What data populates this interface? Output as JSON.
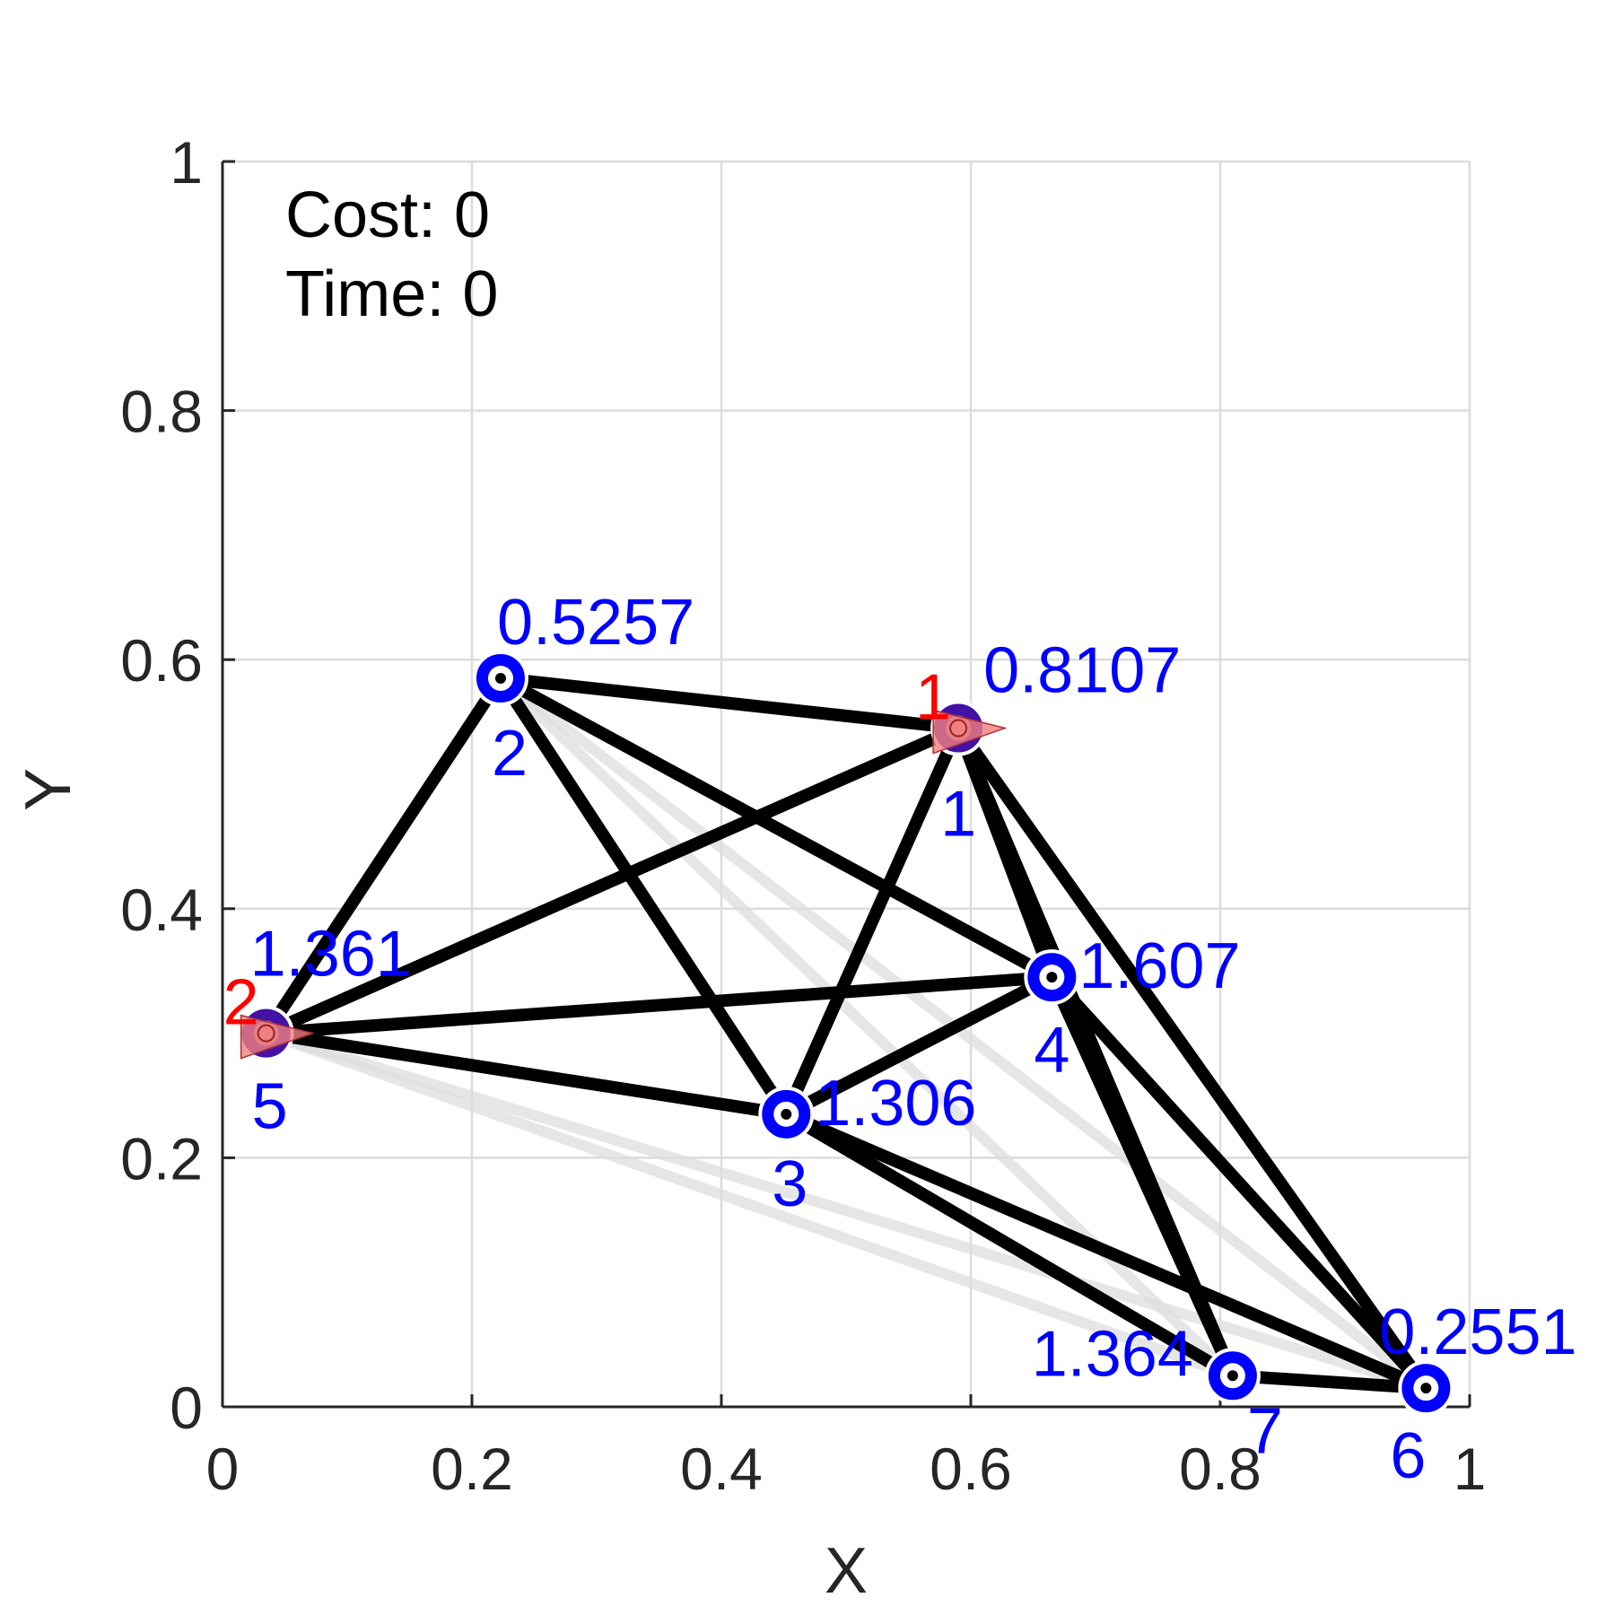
{
  "chart_data": {
    "type": "scatter",
    "title": "",
    "xlabel": "X",
    "ylabel": "Y",
    "xlim": [
      0,
      1
    ],
    "ylim": [
      0,
      1
    ],
    "xticks": [
      "0",
      "0.2",
      "0.4",
      "0.6",
      "0.8",
      "1"
    ],
    "yticks": [
      "0",
      "0.2",
      "0.4",
      "0.6",
      "0.8",
      "1"
    ],
    "grid": true,
    "annotations": {
      "cost": "Cost: 0",
      "time": "Time: 0"
    },
    "nodes": [
      {
        "id": "1",
        "x": 0.59,
        "y": 0.545,
        "value": "0.8107"
      },
      {
        "id": "2",
        "x": 0.223,
        "y": 0.585,
        "value": "0.5257"
      },
      {
        "id": "3",
        "x": 0.452,
        "y": 0.235,
        "value": "1.306"
      },
      {
        "id": "4",
        "x": 0.665,
        "y": 0.345,
        "value": "1.607"
      },
      {
        "id": "5",
        "x": 0.035,
        "y": 0.3,
        "value": "1.361"
      },
      {
        "id": "6",
        "x": 0.965,
        "y": 0.015,
        "value": "0.2551"
      },
      {
        "id": "7",
        "x": 0.81,
        "y": 0.025,
        "value": "1.364"
      }
    ],
    "edges": [
      {
        "from": "2",
        "to": "1",
        "style": "solid"
      },
      {
        "from": "2",
        "to": "5",
        "style": "solid"
      },
      {
        "from": "2",
        "to": "3",
        "style": "solid"
      },
      {
        "from": "2",
        "to": "4",
        "style": "solid"
      },
      {
        "from": "1",
        "to": "5",
        "style": "solid"
      },
      {
        "from": "1",
        "to": "3",
        "style": "solid"
      },
      {
        "from": "1",
        "to": "4",
        "style": "solid"
      },
      {
        "from": "1",
        "to": "7",
        "style": "solid"
      },
      {
        "from": "1",
        "to": "6",
        "style": "solid"
      },
      {
        "from": "5",
        "to": "4",
        "style": "solid"
      },
      {
        "from": "5",
        "to": "3",
        "style": "solid"
      },
      {
        "from": "3",
        "to": "4",
        "style": "solid"
      },
      {
        "from": "3",
        "to": "7",
        "style": "solid"
      },
      {
        "from": "3",
        "to": "6",
        "style": "solid"
      },
      {
        "from": "4",
        "to": "7",
        "style": "solid"
      },
      {
        "from": "4",
        "to": "6",
        "style": "solid"
      },
      {
        "from": "7",
        "to": "6",
        "style": "solid"
      },
      {
        "from": "2",
        "to": "7",
        "style": "faded"
      },
      {
        "from": "2",
        "to": "6",
        "style": "faded"
      },
      {
        "from": "5",
        "to": "7",
        "style": "faded"
      },
      {
        "from": "5",
        "to": "6",
        "style": "faded"
      }
    ],
    "agents": [
      {
        "id": "1",
        "at": "1"
      },
      {
        "id": "2",
        "at": "5"
      }
    ],
    "colors": {
      "node": "#0000ff",
      "edge": "#000000",
      "faded_edge": "#dddddd",
      "agent": "#ff0000",
      "agent_marker": "#f08080",
      "grid": "#dcdcdc",
      "axis": "#262626"
    }
  }
}
